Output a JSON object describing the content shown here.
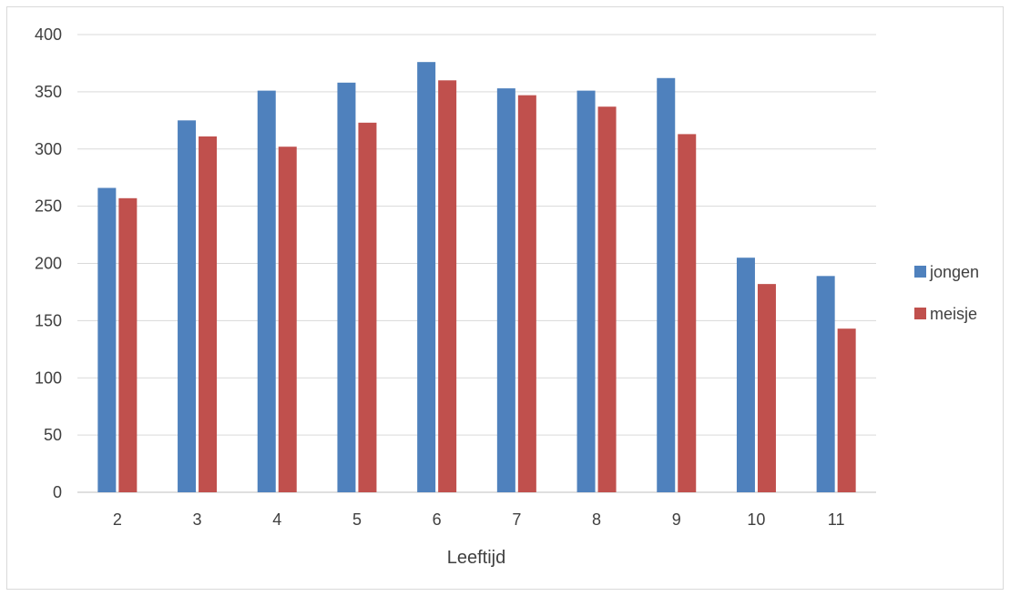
{
  "chart_data": {
    "type": "bar",
    "title": "",
    "xlabel": "Leeftijd",
    "ylabel": "",
    "categories": [
      "2",
      "3",
      "4",
      "5",
      "6",
      "7",
      "8",
      "9",
      "10",
      "11"
    ],
    "series": [
      {
        "name": "jongen",
        "color": "#4f81bd",
        "values": [
          266,
          325,
          351,
          358,
          376,
          353,
          351,
          362,
          205,
          189
        ]
      },
      {
        "name": "meisje",
        "color": "#c0504d",
        "values": [
          257,
          311,
          302,
          323,
          360,
          347,
          337,
          313,
          182,
          143
        ]
      }
    ],
    "ylim": [
      0,
      400
    ],
    "yticks": [
      0,
      50,
      100,
      150,
      200,
      250,
      300,
      350,
      400
    ],
    "grid": true,
    "legend_position": "right"
  }
}
